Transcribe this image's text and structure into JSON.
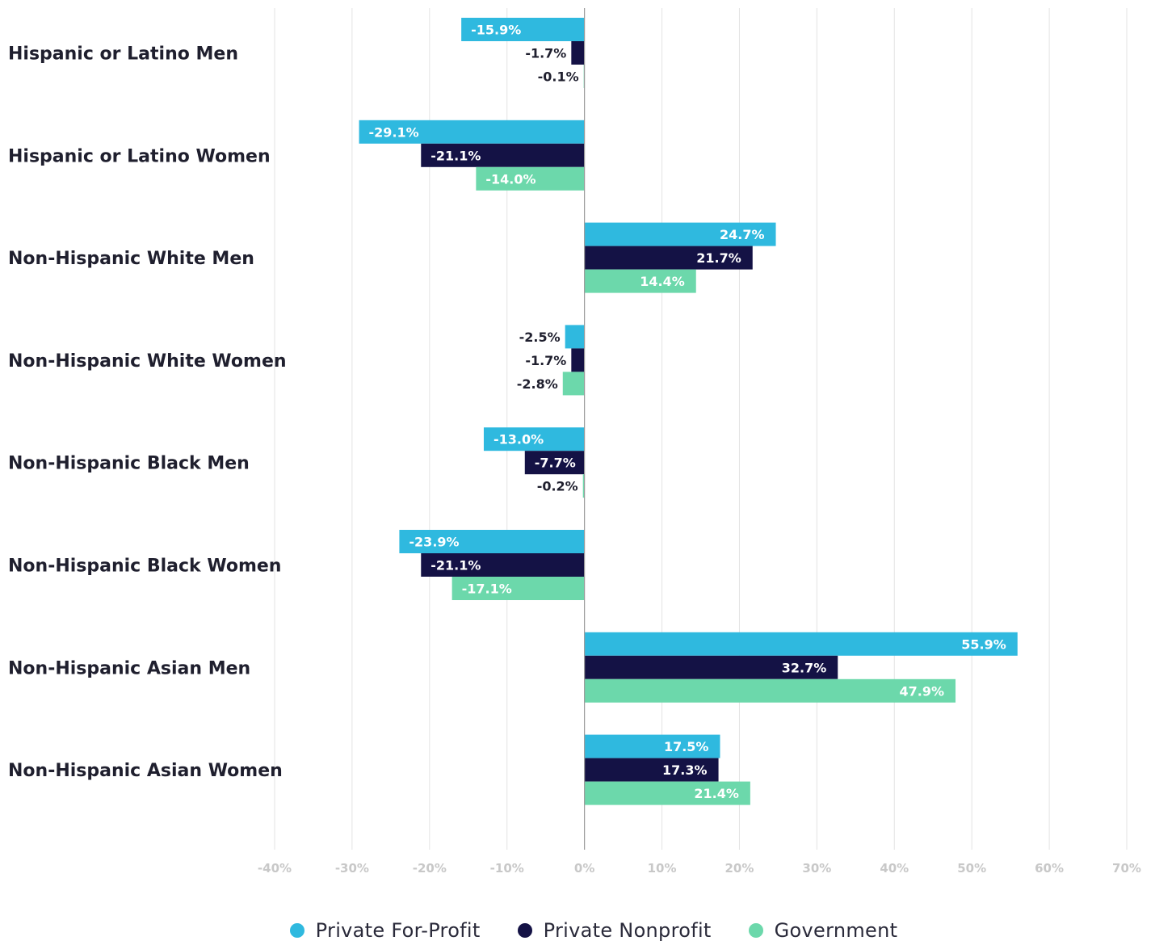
{
  "chart_data": {
    "type": "bar",
    "orientation": "horizontal",
    "categories": [
      "Hispanic or Latino Men",
      "Hispanic or Latino Women",
      "Non-Hispanic White Men",
      "Non-Hispanic White Women",
      "Non-Hispanic Black Men",
      "Non-Hispanic Black Women",
      "Non-Hispanic Asian Men",
      "Non-Hispanic Asian Women"
    ],
    "series": [
      {
        "name": "Private For-Profit",
        "color": "#2fb9df",
        "values": [
          -15.9,
          -29.1,
          24.7,
          -2.5,
          -13.0,
          -23.9,
          55.9,
          17.5
        ],
        "labels": [
          "-15.9%",
          "-29.1%",
          "24.7%",
          "-2.5%",
          "-13.0%",
          "-23.9%",
          "55.9%",
          "17.5%"
        ]
      },
      {
        "name": "Private Nonprofit",
        "color": "#141245",
        "values": [
          -1.7,
          -21.1,
          21.7,
          -1.7,
          -7.7,
          -21.1,
          32.7,
          17.3
        ],
        "labels": [
          "-1.7%",
          "-21.1%",
          "21.7%",
          "-1.7%",
          "-7.7%",
          "-21.1%",
          "32.7%",
          "17.3%"
        ]
      },
      {
        "name": "Government",
        "color": "#6cd8ab",
        "values": [
          -0.1,
          -14.0,
          14.4,
          -2.8,
          -0.2,
          -17.1,
          47.9,
          21.4
        ],
        "labels": [
          "-0.1%",
          "-14.0%",
          "14.4%",
          "-2.8%",
          "-0.2%",
          "-17.1%",
          "47.9%",
          "21.4%"
        ]
      }
    ],
    "xlim": [
      -40,
      70
    ],
    "ticks": [
      -40,
      -30,
      -20,
      -10,
      0,
      10,
      20,
      30,
      40,
      50,
      60,
      70
    ],
    "tick_labels": [
      "-40%",
      "-30%",
      "-20%",
      "-10%",
      "0%",
      "10%",
      "20%",
      "30%",
      "40%",
      "50%",
      "60%",
      "70%"
    ],
    "grid": true,
    "legend_position": "bottom-center",
    "title": "",
    "xlabel": "",
    "ylabel": ""
  },
  "colors": {
    "grid": "#e3e3e3",
    "zero_line": "#9a9a9a",
    "tick_text": "#c8c8c8",
    "category_text": "#1f1f2e",
    "label_on_bar": "#ffffff",
    "label_outside": "#1f1f2e"
  }
}
